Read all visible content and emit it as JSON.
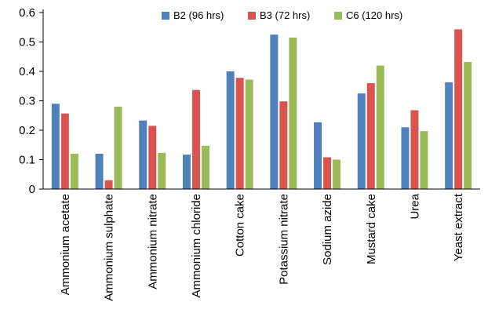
{
  "chart_data": {
    "type": "bar",
    "categories": [
      "Ammonium acetate",
      "Ammonium sulphate",
      "Ammonium nitrate",
      "Ammonium chloride",
      "Cotton cake",
      "Potassium nitrate",
      "Sodium azide",
      "Mustard cake",
      "Urea",
      "Yeast extract"
    ],
    "series": [
      {
        "name": "B2 (96 hrs)",
        "color": "#4f81bd",
        "values": [
          0.29,
          0.12,
          0.233,
          0.117,
          0.4,
          0.525,
          0.227,
          0.325,
          0.21,
          0.363
        ]
      },
      {
        "name": "B3 (72 hrs)",
        "color": "#d9534f",
        "values": [
          0.257,
          0.03,
          0.215,
          0.337,
          0.378,
          0.298,
          0.108,
          0.36,
          0.268,
          0.543
        ]
      },
      {
        "name": "C6 (120 hrs)",
        "color": "#9bbb59",
        "values": [
          0.12,
          0.28,
          0.123,
          0.147,
          0.372,
          0.515,
          0.1,
          0.42,
          0.197,
          0.432
        ]
      }
    ],
    "yticks": [
      "0",
      "0.1",
      "0.2",
      "0.3",
      "0.4",
      "0.5",
      "0.6"
    ],
    "ylim": [
      0,
      0.6
    ],
    "grid": false,
    "legend_position": "top-center"
  }
}
